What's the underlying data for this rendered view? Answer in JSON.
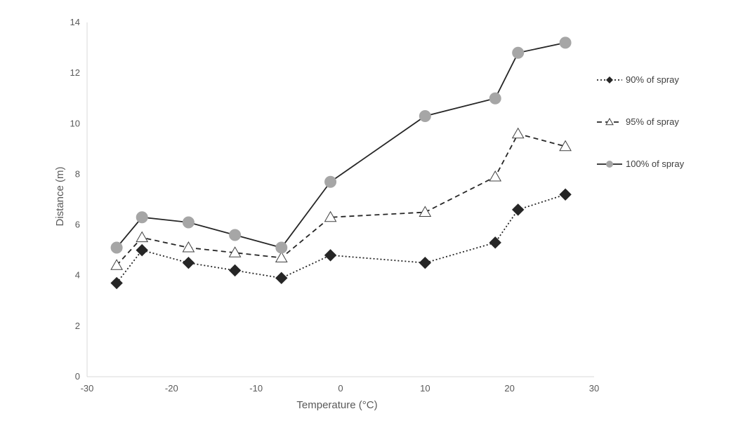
{
  "chart_data": {
    "type": "line",
    "title": "",
    "xlabel": "Temperature (°C)",
    "ylabel": "Distance (m)",
    "xlim": [
      -30,
      30
    ],
    "ylim": [
      0,
      14
    ],
    "xticks": [
      -30,
      -20,
      -10,
      0,
      10,
      20,
      30
    ],
    "yticks": [
      0,
      2,
      4,
      6,
      8,
      10,
      12,
      14
    ],
    "grid": false,
    "legend_position": "right",
    "series": [
      {
        "name": "90% of spray",
        "marker": "diamond",
        "line_style": "dotted",
        "color": "#262626",
        "x": [
          -26.5,
          -23.5,
          -18,
          -12.5,
          -7,
          -1.2,
          10,
          18.3,
          21,
          26.6
        ],
        "y": [
          3.7,
          5.0,
          4.5,
          4.2,
          3.9,
          4.8,
          4.5,
          5.3,
          6.6,
          7.2
        ]
      },
      {
        "name": "95% of spray",
        "marker": "triangle",
        "line_style": "dashed",
        "color": "#262626",
        "x": [
          -26.5,
          -23.5,
          -18,
          -12.5,
          -7,
          -1.2,
          10,
          18.3,
          21,
          26.6
        ],
        "y": [
          4.4,
          5.5,
          5.1,
          4.9,
          4.7,
          6.3,
          6.5,
          7.9,
          9.6,
          9.1
        ]
      },
      {
        "name": "100% of spray",
        "marker": "circle",
        "line_style": "solid",
        "color": "#262626",
        "marker_color": "#a6a6a6",
        "x": [
          -26.5,
          -23.5,
          -18,
          -12.5,
          -7,
          -1.2,
          10,
          18.3,
          21,
          26.6
        ],
        "y": [
          5.1,
          6.3,
          6.1,
          5.6,
          5.1,
          7.7,
          10.3,
          11.0,
          12.8,
          13.2
        ]
      }
    ]
  }
}
